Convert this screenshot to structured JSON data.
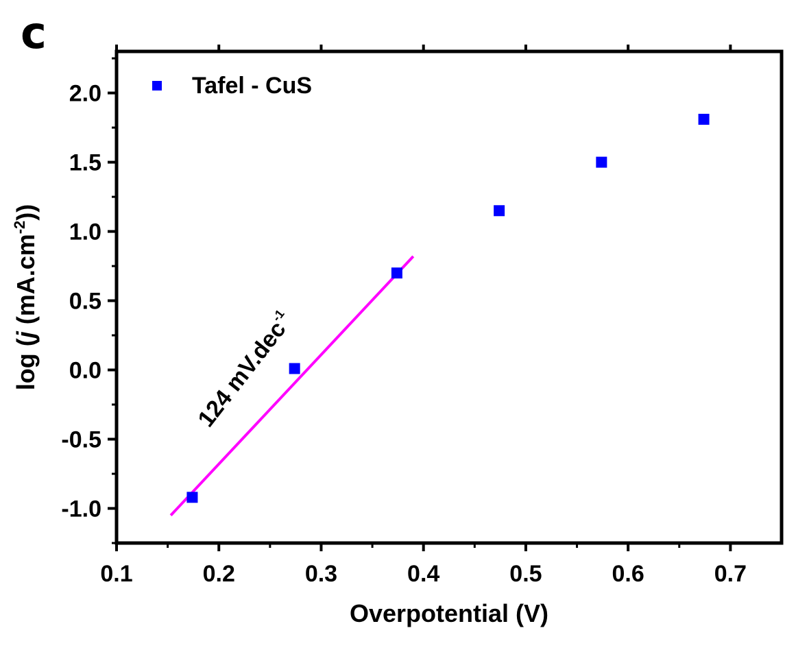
{
  "panel_label": "c",
  "chart_data": {
    "type": "scatter",
    "xlabel": "Overpotential (V)",
    "ylabel_parts": {
      "pre": "log (",
      "italic": "j",
      "mid": " (mA.cm",
      "sup": "-2",
      "post": "))"
    },
    "xlim": [
      0.1,
      0.75
    ],
    "ylim": [
      -1.25,
      2.3
    ],
    "xticks": [
      0.1,
      0.2,
      0.3,
      0.4,
      0.5,
      0.6,
      0.7
    ],
    "xtick_labels": [
      "0.1",
      "0.2",
      "0.3",
      "0.4",
      "0.5",
      "0.6",
      "0.7"
    ],
    "yticks": [
      -1.0,
      -0.5,
      0.0,
      0.5,
      1.0,
      1.5,
      2.0
    ],
    "ytick_labels": [
      "-1.0",
      "-0.5",
      "0.0",
      "0.5",
      "1.0",
      "1.5",
      "2.0"
    ],
    "grid": false,
    "legend_position": "top-left",
    "series": [
      {
        "name": "Tafel - CuS",
        "marker": "square",
        "color": "#0000ff",
        "x": [
          0.174,
          0.274,
          0.374,
          0.474,
          0.574,
          0.674
        ],
        "y": [
          -0.92,
          0.01,
          0.7,
          1.15,
          1.5,
          1.81
        ]
      }
    ],
    "fit_line": {
      "color": "#ff00ff",
      "x": [
        0.153,
        0.39
      ],
      "y": [
        -1.05,
        0.82
      ]
    },
    "annotation": {
      "text": "124 mV.dec",
      "sup": "-1"
    }
  }
}
